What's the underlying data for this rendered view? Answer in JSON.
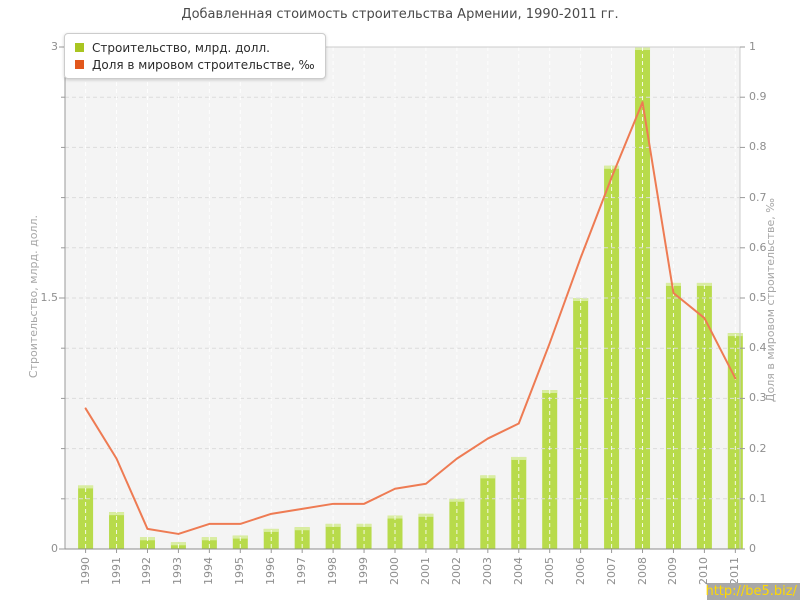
{
  "header": {
    "title": "Добавленная стоимость строительства Армении, 1990-2011 гг."
  },
  "legend": {
    "items": [
      {
        "label": "Строительство, млрд. долл.",
        "swatch_color": "#a9c521"
      },
      {
        "label": "Доля в мировом строительстве, ‰",
        "swatch_color": "#e2571c"
      }
    ]
  },
  "watermark": {
    "text": "http://be5.biz/",
    "text_color": "#ffd900",
    "bg_color": "#a8a8a8"
  },
  "chart_data": {
    "type": "bar+line",
    "title": "Добавленная стоимость строительства Армении, 1990-2011 гг.",
    "categories": [
      "1990",
      "1991",
      "1992",
      "1993",
      "1994",
      "1995",
      "1996",
      "1997",
      "1998",
      "1999",
      "2000",
      "2001",
      "2002",
      "2003",
      "2004",
      "2005",
      "2006",
      "2007",
      "2008",
      "2009",
      "2010",
      "2011"
    ],
    "series": [
      {
        "name": "Строительство, млрд. долл.",
        "type": "bar",
        "axis": "left",
        "color": "#b8db4b",
        "color_top": "#d9eda2",
        "values": [
          0.38,
          0.22,
          0.07,
          0.04,
          0.07,
          0.08,
          0.12,
          0.13,
          0.15,
          0.15,
          0.2,
          0.21,
          0.3,
          0.44,
          0.55,
          0.95,
          1.5,
          2.29,
          3.0,
          1.59,
          1.59,
          1.29
        ]
      },
      {
        "name": "Доля в мировом строительстве, ‰",
        "type": "line",
        "axis": "right",
        "color": "#ee7b53",
        "values": [
          0.28,
          0.18,
          0.04,
          0.03,
          0.05,
          0.05,
          0.07,
          0.08,
          0.09,
          0.09,
          0.12,
          0.13,
          0.18,
          0.22,
          0.25,
          0.41,
          0.58,
          0.74,
          0.89,
          0.51,
          0.46,
          0.34
        ]
      }
    ],
    "left_axis": {
      "title": "Строительство, млрд. долл.",
      "min": 0,
      "max": 3,
      "ticks": [
        "3",
        "1.5",
        "0"
      ]
    },
    "right_axis": {
      "title": "Доля в мировом строительстве, ‰",
      "min": 0,
      "max": 1,
      "ticks": [
        "1",
        "0.9",
        "0.8",
        "0.7",
        "0.6",
        "0.5",
        "0.4",
        "0.3",
        "0.2",
        "0.1",
        "0"
      ]
    },
    "grid": {
      "horizontal": "dashed",
      "h_color": "#dcdcdc",
      "vertical": "dashed",
      "v_color": "#ffffff"
    },
    "plot_bg": "#f4f4f4",
    "legend_position": "top-left"
  }
}
